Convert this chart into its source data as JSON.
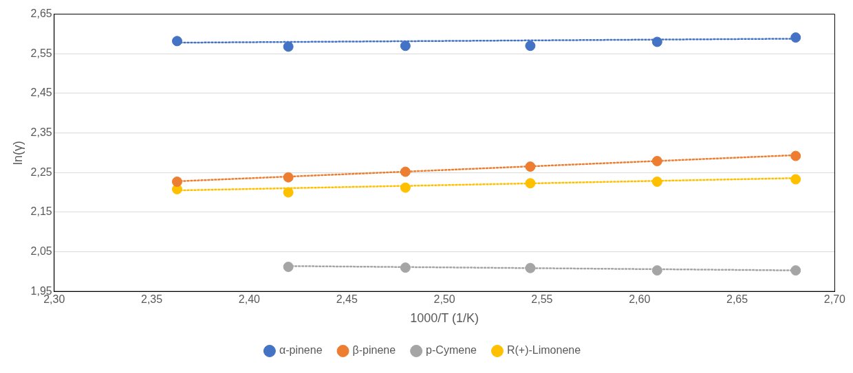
{
  "chart_data": {
    "type": "scatter",
    "xlabel": "1000/T (1/K)",
    "ylabel": "ln(γ)",
    "xlim": [
      2.3,
      2.7
    ],
    "xticks": [
      {
        "value": 2.3,
        "label": "2,30"
      },
      {
        "value": 2.35,
        "label": "2,35"
      },
      {
        "value": 2.4,
        "label": "2,40"
      },
      {
        "value": 2.45,
        "label": "2,45"
      },
      {
        "value": 2.5,
        "label": "2,50"
      },
      {
        "value": 2.55,
        "label": "2,55"
      },
      {
        "value": 2.6,
        "label": "2,60"
      },
      {
        "value": 2.65,
        "label": "2,65"
      },
      {
        "value": 2.7,
        "label": "2,70"
      }
    ],
    "ylim": [
      1.95,
      2.65
    ],
    "yticks": [
      {
        "value": 1.95,
        "label": "1,95"
      },
      {
        "value": 2.05,
        "label": "2,05"
      },
      {
        "value": 2.15,
        "label": "2,15"
      },
      {
        "value": 2.25,
        "label": "2,25"
      },
      {
        "value": 2.35,
        "label": "2,35"
      },
      {
        "value": 2.45,
        "label": "2,45"
      },
      {
        "value": 2.55,
        "label": "2,55"
      },
      {
        "value": 2.65,
        "label": "2,65"
      }
    ],
    "grid": "y",
    "legend": "bottom",
    "marker": "circle",
    "series": [
      {
        "name": "α-pinene",
        "color": "#4472c4",
        "x": [
          2.363,
          2.42,
          2.48,
          2.544,
          2.609,
          2.68
        ],
        "values": [
          2.582,
          2.568,
          2.57,
          2.57,
          2.58,
          2.591
        ]
      },
      {
        "name": "β-pinene",
        "color": "#ed7d31",
        "x": [
          2.363,
          2.42,
          2.48,
          2.544,
          2.609,
          2.68
        ],
        "values": [
          2.227,
          2.238,
          2.252,
          2.265,
          2.279,
          2.292
        ]
      },
      {
        "name": "p-Cymene",
        "color": "#a5a5a5",
        "x": [
          2.42,
          2.48,
          2.544,
          2.609,
          2.68
        ],
        "values": [
          2.012,
          2.01,
          2.009,
          2.003,
          2.003
        ]
      },
      {
        "name": "R(+)-Limonene",
        "color": "#ffc000",
        "x": [
          2.363,
          2.42,
          2.48,
          2.544,
          2.609,
          2.68
        ],
        "values": [
          2.208,
          2.2,
          2.212,
          2.223,
          2.227,
          2.233
        ]
      },
      {
        "type": "line",
        "color": "#4472c4",
        "line_style": "dotted",
        "marker": "none",
        "x": [
          2.363,
          2.68
        ],
        "values": [
          2.578,
          2.588
        ]
      },
      {
        "type": "line",
        "color": "#ed7d31",
        "line_style": "dotted",
        "marker": "none",
        "x": [
          2.363,
          2.68
        ],
        "values": [
          2.228,
          2.294
        ]
      },
      {
        "type": "line",
        "color": "#a5a5a5",
        "line_style": "dotted",
        "marker": "none",
        "x": [
          2.42,
          2.68
        ],
        "values": [
          2.014,
          2.003
        ]
      },
      {
        "type": "line",
        "color": "#ffc000",
        "line_style": "dotted",
        "marker": "none",
        "x": [
          2.363,
          2.68
        ],
        "values": [
          2.205,
          2.236
        ]
      }
    ]
  }
}
